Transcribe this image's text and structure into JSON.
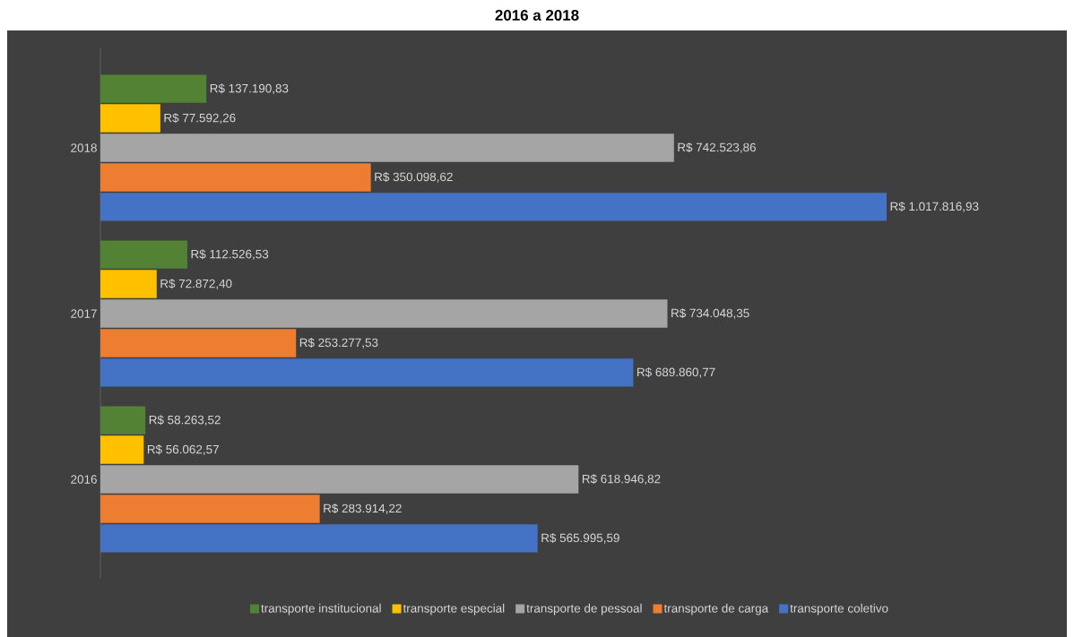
{
  "chart_data": {
    "type": "bar",
    "orientation": "horizontal",
    "title": "2016 a 2018",
    "categories": [
      "2018",
      "2017",
      "2016"
    ],
    "legend": "bottom",
    "tick_labels": "y",
    "series": [
      {
        "name": "transporte institucional",
        "color": "#548235",
        "values": [
          137190.83,
          112526.53,
          58263.52
        ],
        "value_labels": [
          "R$ 137.190,83",
          "R$ 112.526,53",
          "R$ 58.263,52"
        ]
      },
      {
        "name": "transporte especial",
        "color": "#ffc000",
        "values": [
          77592.26,
          72872.4,
          56062.57
        ],
        "value_labels": [
          "R$ 77.592,26",
          "R$ 72.872,40",
          "R$ 56.062,57"
        ]
      },
      {
        "name": "transporte de pessoal",
        "color": "#a5a5a5",
        "values": [
          742523.86,
          734048.35,
          618946.82
        ],
        "value_labels": [
          "R$ 742.523,86",
          "R$ 734.048,35",
          "R$ 618.946,82"
        ]
      },
      {
        "name": "transporte de carga",
        "color": "#ed7d31",
        "values": [
          350098.62,
          253277.53,
          283914.22
        ],
        "value_labels": [
          "R$ 350.098,62",
          "R$ 253.277,53",
          "R$ 283.914,22"
        ]
      },
      {
        "name": "transporte coletivo",
        "color": "#4472c4",
        "values": [
          1017816.93,
          689860.77,
          565995.59
        ],
        "value_labels": [
          "R$ 1.017.816,93",
          "R$ 689.860,77",
          "R$ 565.995,59"
        ]
      }
    ]
  }
}
